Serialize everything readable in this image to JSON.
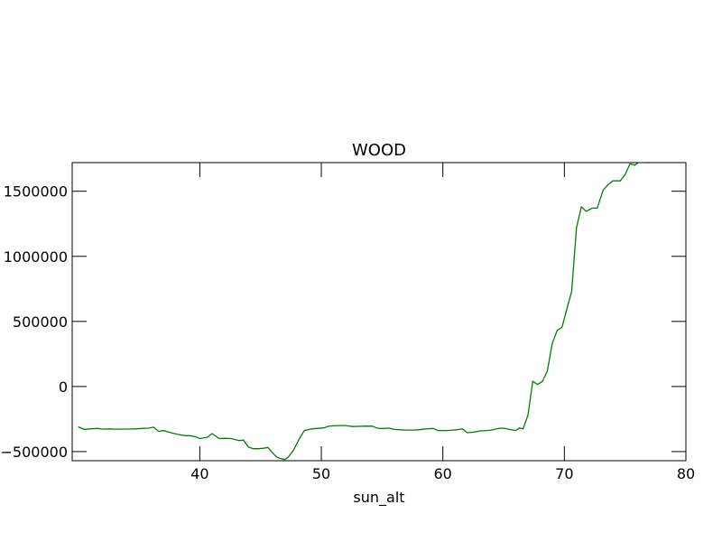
{
  "chart_data": {
    "type": "line",
    "title": "WOOD",
    "xlabel": "sun_alt",
    "ylabel": "",
    "xlim": [
      29.5,
      80
    ],
    "ylim": [
      -570000,
      1720000
    ],
    "xticks": [
      40,
      50,
      60,
      70,
      80
    ],
    "xtick_labels": [
      "40",
      "50",
      "60",
      "70",
      "80"
    ],
    "yticks": [
      -500000,
      0,
      500000,
      1000000,
      1500000
    ],
    "ytick_labels": [
      "−500000",
      "0",
      "500000",
      "1000000",
      "1500000"
    ],
    "grid": false,
    "series": [
      {
        "color": "#008000",
        "x": [
          30.0,
          30.5,
          31.0,
          31.6,
          32.0,
          32.6,
          33.0,
          33.6,
          34.2,
          34.8,
          35.2,
          35.8,
          36.2,
          36.6,
          37.0,
          37.6,
          38.2,
          38.8,
          39.2,
          39.6,
          40.0,
          40.6,
          41.0,
          41.6,
          42.0,
          42.6,
          43.2,
          43.6,
          44.0,
          44.4,
          44.8,
          45.2,
          45.6,
          46.0,
          46.3,
          46.7,
          47.0,
          47.3,
          47.7,
          48.2,
          48.6,
          49.2,
          49.6,
          50.2,
          50.6,
          51.0,
          51.6,
          52.0,
          52.6,
          53.0,
          53.6,
          54.2,
          54.6,
          55.0,
          55.6,
          56.0,
          56.6,
          57.0,
          57.6,
          58.0,
          58.6,
          59.2,
          59.6,
          60.0,
          60.4,
          60.8,
          61.2,
          61.6,
          62.0,
          62.6,
          63.0,
          63.6,
          64.0,
          64.6,
          65.0,
          65.5,
          66.0,
          66.3,
          66.6,
          67.0,
          67.4,
          67.8,
          68.2,
          68.6,
          69.0,
          69.4,
          69.8,
          70.3,
          70.6,
          71.0,
          71.4,
          71.8,
          72.3,
          72.7,
          73.2,
          73.6,
          74.0,
          74.6,
          75.0,
          75.4,
          75.8,
          76.2,
          76.8,
          77.0
        ],
        "y": [
          -310000,
          -330000,
          -325000,
          -322000,
          -328000,
          -326000,
          -328000,
          -327000,
          -327000,
          -325000,
          -322000,
          -320000,
          -312000,
          -345000,
          -338000,
          -355000,
          -368000,
          -378000,
          -378000,
          -385000,
          -400000,
          -390000,
          -362000,
          -400000,
          -398000,
          -400000,
          -415000,
          -412000,
          -465000,
          -478000,
          -478000,
          -475000,
          -468000,
          -510000,
          -540000,
          -555000,
          -562000,
          -540000,
          -490000,
          -400000,
          -338000,
          -326000,
          -322000,
          -318000,
          -305000,
          -302000,
          -300000,
          -300000,
          -308000,
          -306000,
          -304000,
          -305000,
          -320000,
          -322000,
          -320000,
          -330000,
          -333000,
          -335000,
          -335000,
          -333000,
          -326000,
          -322000,
          -338000,
          -338000,
          -338000,
          -335000,
          -332000,
          -325000,
          -355000,
          -350000,
          -342000,
          -338000,
          -335000,
          -322000,
          -320000,
          -330000,
          -338000,
          -318000,
          -325000,
          -220000,
          40000,
          15000,
          40000,
          120000,
          330000,
          430000,
          455000,
          630000,
          730000,
          1220000,
          1380000,
          1345000,
          1370000,
          1370000,
          1510000,
          1550000,
          1580000,
          1580000,
          1630000,
          1710000,
          1700000,
          1730000,
          1720000,
          1720000
        ]
      }
    ]
  }
}
